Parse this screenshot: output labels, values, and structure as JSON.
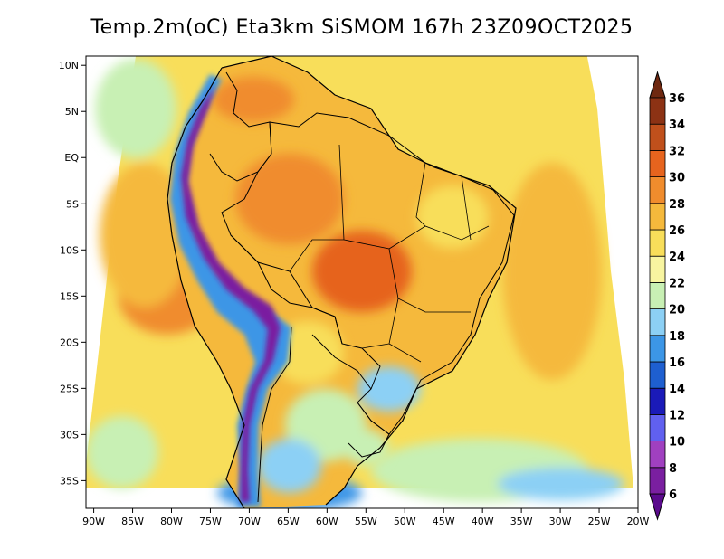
{
  "title": "Temp.2m(oC) Eta3km SiSMOM 167h 23Z09OCT2025",
  "axes": {
    "lat_labels": [
      "10N",
      "5N",
      "EQ",
      "5S",
      "10S",
      "15S",
      "20S",
      "25S",
      "30S",
      "35S"
    ],
    "lat_values": [
      10,
      5,
      0,
      -5,
      -10,
      -15,
      -20,
      -25,
      -30,
      -35
    ],
    "lon_labels": [
      "90W",
      "85W",
      "80W",
      "75W",
      "70W",
      "65W",
      "60W",
      "55W",
      "50W",
      "45W",
      "40W",
      "35W",
      "30W",
      "25W",
      "20W"
    ],
    "lon_values": [
      -90,
      -85,
      -80,
      -75,
      -70,
      -65,
      -60,
      -55,
      -50,
      -45,
      -40,
      -35,
      -30,
      -25,
      -20
    ],
    "lat_range": [
      -38,
      11
    ],
    "lon_range": [
      -91,
      -20
    ]
  },
  "colorbar": {
    "labels": [
      "6",
      "8",
      "10",
      "12",
      "14",
      "16",
      "18",
      "20",
      "22",
      "24",
      "26",
      "28",
      "30",
      "32",
      "34",
      "36"
    ],
    "levels": [
      6,
      8,
      10,
      12,
      14,
      16,
      18,
      20,
      22,
      24,
      26,
      28,
      30,
      32,
      34,
      36
    ],
    "colors": [
      "#7a1fa0",
      "#a040c0",
      "#6060f0",
      "#1a1ab8",
      "#1e5fd0",
      "#3c96e6",
      "#8cd0f5",
      "#c8f0b4",
      "#f8f5a0",
      "#f8de5a",
      "#f5b93c",
      "#f08c2d",
      "#e6641e",
      "#c0501c",
      "#8c3214"
    ],
    "below_color": "#5a0a8c",
    "above_color": "#6e2810"
  },
  "colors": {
    "ocean_warm": "#f8de5a",
    "ocean_mid": "#f5b93c",
    "ocean_hot": "#f08c2d",
    "land_hot": "#e6641e",
    "cool": "#8cd0f5",
    "cold": "#3c96e6",
    "andes": "#7a1fa0",
    "border": "#000000"
  }
}
